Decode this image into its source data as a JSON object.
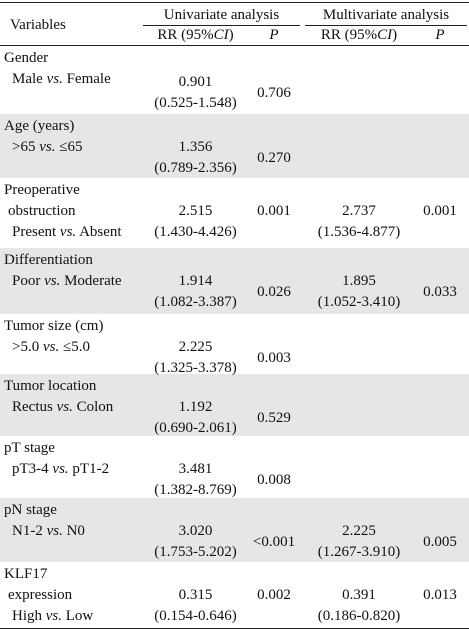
{
  "header": {
    "variables": "Variables",
    "univariate": {
      "title": "Univariate analysis",
      "rr": [
        "RR (95%",
        "CI",
        ")"
      ],
      "p": "P"
    },
    "multivariate": {
      "title": "Multivariate analysis",
      "rr": [
        "RR (95%",
        "CI",
        ")"
      ],
      "p": "P"
    }
  },
  "rows": [
    {
      "variable": [
        "Gender"
      ],
      "comparison": [
        "Male ",
        "vs.",
        " Female"
      ],
      "uni_rr": "0.901",
      "uni_ci": "(0.525-1.548)",
      "uni_p": "0.706"
    },
    {
      "variable": [
        "Age (years)"
      ],
      "comparison": [
        ">65 ",
        "vs.",
        " ≤65"
      ],
      "uni_rr": "1.356",
      "uni_ci": "(0.789-2.356)",
      "uni_p": "0.270"
    },
    {
      "variable": [
        "Preoperative",
        "obstruction"
      ],
      "comparison": [
        "Present ",
        "vs.",
        " Absent"
      ],
      "uni_rr": "2.515",
      "uni_ci": "(1.430-4.426)",
      "uni_p": "0.001",
      "multi_rr": "2.737",
      "multi_ci": "(1.536-4.877)",
      "multi_p": "0.001"
    },
    {
      "variable": [
        "Differentiation"
      ],
      "comparison": [
        "Poor ",
        "vs.",
        " Moderate"
      ],
      "uni_rr": "1.914",
      "uni_ci": "(1.082-3.387)",
      "uni_p": "0.026",
      "multi_rr": "1.895",
      "multi_ci": "(1.052-3.410)",
      "multi_p": "0.033"
    },
    {
      "variable": [
        "Tumor size (cm)"
      ],
      "comparison": [
        ">5.0 ",
        "vs.",
        " ≤5.0"
      ],
      "uni_rr": "2.225",
      "uni_ci": "(1.325-3.378)",
      "uni_p": "0.003"
    },
    {
      "variable": [
        "Tumor location"
      ],
      "comparison": [
        "Rectus ",
        "vs.",
        " Colon"
      ],
      "uni_rr": "1.192",
      "uni_ci": "(0.690-2.061)",
      "uni_p": "0.529"
    },
    {
      "variable": [
        "pT stage"
      ],
      "comparison": [
        "pT3-4 ",
        "vs.",
        " pT1-2"
      ],
      "uni_rr": "3.481",
      "uni_ci": "(1.382-8.769)",
      "uni_p": "0.008"
    },
    {
      "variable": [
        "pN stage"
      ],
      "comparison": [
        "N1-2 ",
        "vs.",
        " N0"
      ],
      "uni_rr": "3.020",
      "uni_ci": "(1.753-5.202)",
      "uni_p": "<0.001",
      "multi_rr": "2.225",
      "multi_ci": "(1.267-3.910)",
      "multi_p": "0.005"
    },
    {
      "variable": [
        "KLF17",
        "expression"
      ],
      "comparison": [
        "High ",
        "vs.",
        " Low"
      ],
      "uni_rr": "0.315",
      "uni_ci": "(0.154-0.646)",
      "uni_p": "0.002",
      "multi_rr": "0.391",
      "multi_ci": "(0.186-0.820)",
      "multi_p": "0.013"
    }
  ]
}
